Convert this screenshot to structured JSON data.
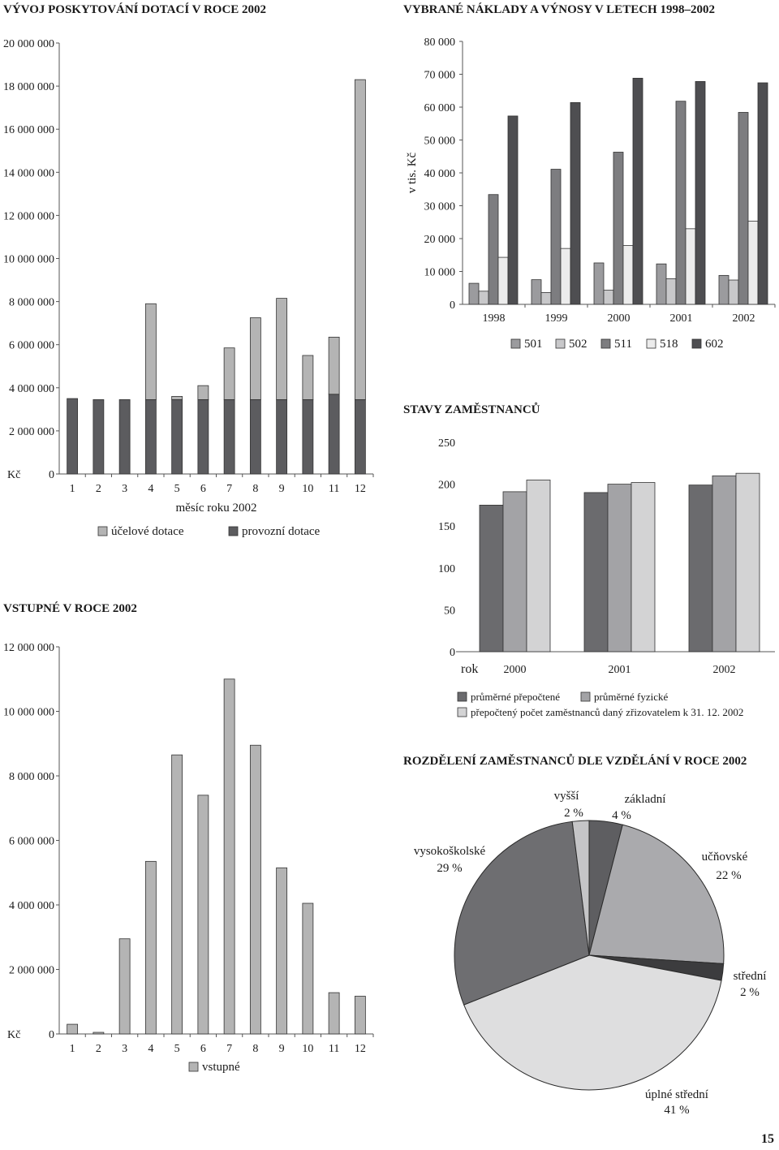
{
  "page_number": "15",
  "colors": {
    "light": "#b4b4b4",
    "dark": "#5c5c5f",
    "c501": "#9b9b9e",
    "c502": "#c8c8ca",
    "c511": "#7d7d80",
    "c518": "#ececec",
    "c602": "#4e4e51",
    "emp1": "#6b6b6e",
    "emp2": "#a3a3a6",
    "emp3": "#d3d3d4",
    "pie_zakladni": "#5e5e61",
    "pie_ucnovske": "#aaaaad",
    "pie_stredni": "#3c3c3e",
    "pie_uplne": "#dededf",
    "pie_vs": "#6e6e71",
    "pie_vyssi": "#c5c5c7"
  },
  "chart_data": [
    {
      "id": "dotace",
      "type": "bar",
      "stacked": true,
      "title": "VÝVOJ POSKYTOVÁNÍ DOTACÍ V ROCE 2002",
      "xlabel": "měsíc roku 2002",
      "ylabel": "Kč",
      "ylim": [
        0,
        20000000
      ],
      "yticks": [
        "20 000 000",
        "18 000 000",
        "16 000 000",
        "14 000 000",
        "12 000 000",
        "10 000 000",
        "8 000 000",
        "6 000 000",
        "4 000 000",
        "2 000 000",
        "0"
      ],
      "categories": [
        "1",
        "2",
        "3",
        "4",
        "5",
        "6",
        "7",
        "8",
        "9",
        "10",
        "11",
        "12"
      ],
      "series": [
        {
          "name": "provozní dotace",
          "values": [
            3500000,
            3450000,
            3450000,
            3450000,
            3450000,
            3450000,
            3450000,
            3450000,
            3450000,
            3450000,
            3700000,
            3450000
          ]
        },
        {
          "name": "účelové dotace",
          "values": [
            0,
            0,
            0,
            4450000,
            150000,
            650000,
            2400000,
            3800000,
            4700000,
            2050000,
            2650000,
            14850000
          ]
        }
      ],
      "legend": [
        "účelové dotace",
        "provozní dotace"
      ]
    },
    {
      "id": "naklady",
      "type": "bar",
      "title": "VYBRANÉ NÁKLADY A VÝNOSY V LETECH 1998–2002",
      "ylabel": "v tis. Kč",
      "ylim": [
        0,
        80000
      ],
      "yticks": [
        "80 000",
        "70 000",
        "60 000",
        "50 000",
        "40 000",
        "30 000",
        "20 000",
        "10 000",
        "0"
      ],
      "categories": [
        "1998",
        "1999",
        "2000",
        "2001",
        "2002"
      ],
      "series": [
        {
          "name": "501",
          "values": [
            6400,
            7500,
            12600,
            12300,
            8800
          ]
        },
        {
          "name": "502",
          "values": [
            4000,
            3600,
            4300,
            7800,
            7400
          ]
        },
        {
          "name": "511",
          "values": [
            33400,
            41100,
            46300,
            61800,
            58400
          ]
        },
        {
          "name": "518",
          "values": [
            14300,
            17000,
            17900,
            23000,
            25300
          ]
        },
        {
          "name": "602",
          "values": [
            57300,
            61400,
            68800,
            67800,
            67400
          ]
        }
      ]
    },
    {
      "id": "zamestnanci",
      "type": "bar",
      "title": "STAVY ZAMĚSTNANCŮ",
      "xlabel": "rok",
      "ylim": [
        0,
        250
      ],
      "yticks": [
        "250",
        "200",
        "150",
        "100",
        "50",
        "0"
      ],
      "categories": [
        "2000",
        "2001",
        "2002"
      ],
      "series": [
        {
          "name": "průměrné přepočtené",
          "values": [
            175,
            190,
            199
          ]
        },
        {
          "name": "průměrné fyzické",
          "values": [
            191,
            200,
            210
          ]
        },
        {
          "name": "přepočtený počet zaměstnanců daný zřizovatelem k 31. 12. 2002",
          "values": [
            205,
            202,
            213
          ]
        }
      ]
    },
    {
      "id": "vstupne",
      "type": "bar",
      "title": "VSTUPNÉ V ROCE 2002",
      "ylabel": "Kč",
      "ylim": [
        0,
        12000000
      ],
      "yticks": [
        "12 000 000",
        "10 000 000",
        "8 000 000",
        "6 000 000",
        "4 000 000",
        "2 000 000",
        "0"
      ],
      "categories": [
        "1",
        "2",
        "3",
        "4",
        "5",
        "6",
        "7",
        "8",
        "9",
        "10",
        "11",
        "12"
      ],
      "series": [
        {
          "name": "vstupné",
          "values": [
            300000,
            50000,
            2950000,
            5350000,
            8650000,
            7400000,
            11000000,
            8950000,
            5150000,
            4050000,
            1280000,
            1170000
          ]
        }
      ]
    },
    {
      "id": "vzdelani",
      "type": "pie",
      "title": "ROZDĚLENÍ ZAMĚSTNANCŮ DLE VZDĚLÁNÍ V ROCE 2002",
      "slices": [
        {
          "name": "základní",
          "label": "4 %",
          "value": 4
        },
        {
          "name": "učňovské",
          "label": "22 %",
          "value": 22
        },
        {
          "name": "střední",
          "label": "2 %",
          "value": 2
        },
        {
          "name": "úplné střední",
          "label": "41 %",
          "value": 41
        },
        {
          "name": "vysokoškolské",
          "label": "29 %",
          "value": 29
        },
        {
          "name": "vyšší",
          "label": "2 %",
          "value": 2
        }
      ]
    }
  ]
}
